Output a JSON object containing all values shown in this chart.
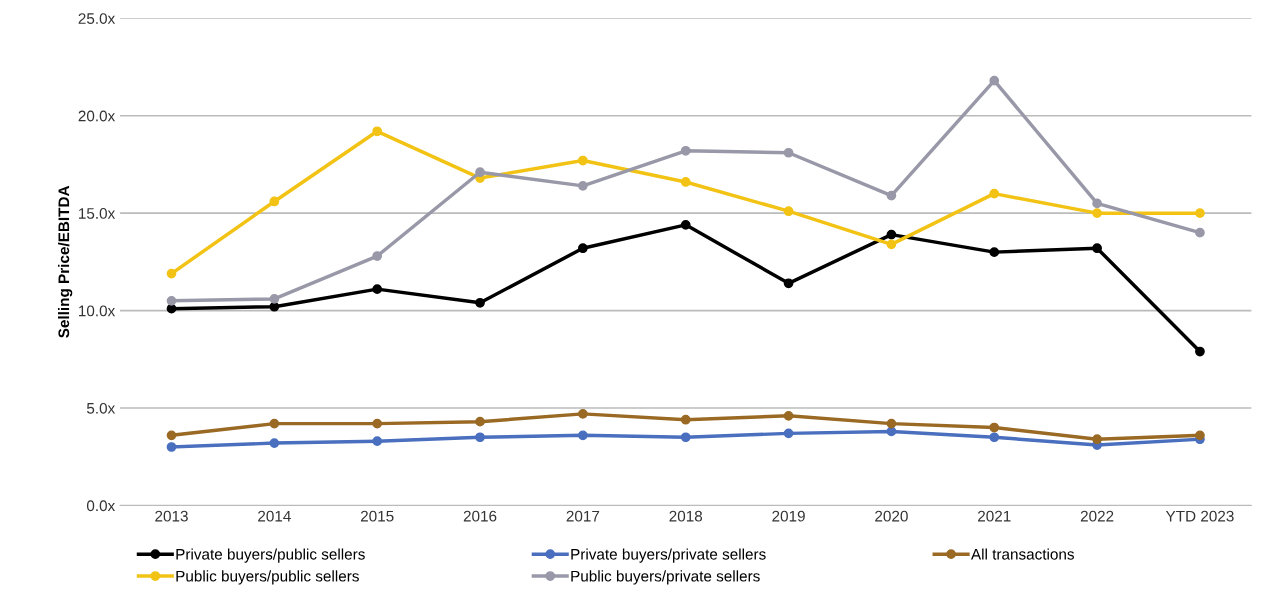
{
  "chart_data": {
    "type": "line",
    "ylabel": "Selling Price/EBITDA",
    "categories": [
      "2013",
      "2014",
      "2015",
      "2016",
      "2017",
      "2018",
      "2019",
      "2020",
      "2021",
      "2022",
      "YTD 2023"
    ],
    "series": [
      {
        "name": "Private buyers/public sellers",
        "color": "#000000",
        "values": [
          10.1,
          10.2,
          11.1,
          10.4,
          13.2,
          14.4,
          11.4,
          13.9,
          13.0,
          13.2,
          7.9
        ]
      },
      {
        "name": "Public buyers/public sellers",
        "color": "#f2c314",
        "values": [
          11.9,
          15.6,
          19.2,
          16.8,
          17.7,
          16.6,
          15.1,
          13.4,
          16.0,
          15.0,
          15.0
        ]
      },
      {
        "name": "Private buyers/private sellers",
        "color": "#4a6fbf",
        "values": [
          3.0,
          3.2,
          3.3,
          3.5,
          3.6,
          3.5,
          3.7,
          3.8,
          3.5,
          3.1,
          3.4
        ]
      },
      {
        "name": "Public buyers/private sellers",
        "color": "#9898a8",
        "values": [
          10.5,
          10.6,
          12.8,
          17.1,
          16.4,
          18.2,
          18.1,
          15.9,
          21.8,
          15.5,
          14.0
        ]
      },
      {
        "name": "All transactions",
        "color": "#9a6a25",
        "values": [
          3.6,
          4.2,
          4.2,
          4.3,
          4.7,
          4.4,
          4.6,
          4.2,
          4.0,
          3.4,
          3.6
        ]
      }
    ],
    "ylim": [
      0,
      25
    ],
    "yticks": [
      {
        "value": 0,
        "label": "0.0x"
      },
      {
        "value": 5,
        "label": "5.0x"
      },
      {
        "value": 10,
        "label": "10.0x"
      },
      {
        "value": 15,
        "label": "15.0x"
      },
      {
        "value": 20,
        "label": "20.0x"
      },
      {
        "value": 25,
        "label": "25.0x"
      }
    ],
    "grid": "y",
    "legend": "bottom",
    "marker": "circle",
    "line_style": "solid"
  }
}
